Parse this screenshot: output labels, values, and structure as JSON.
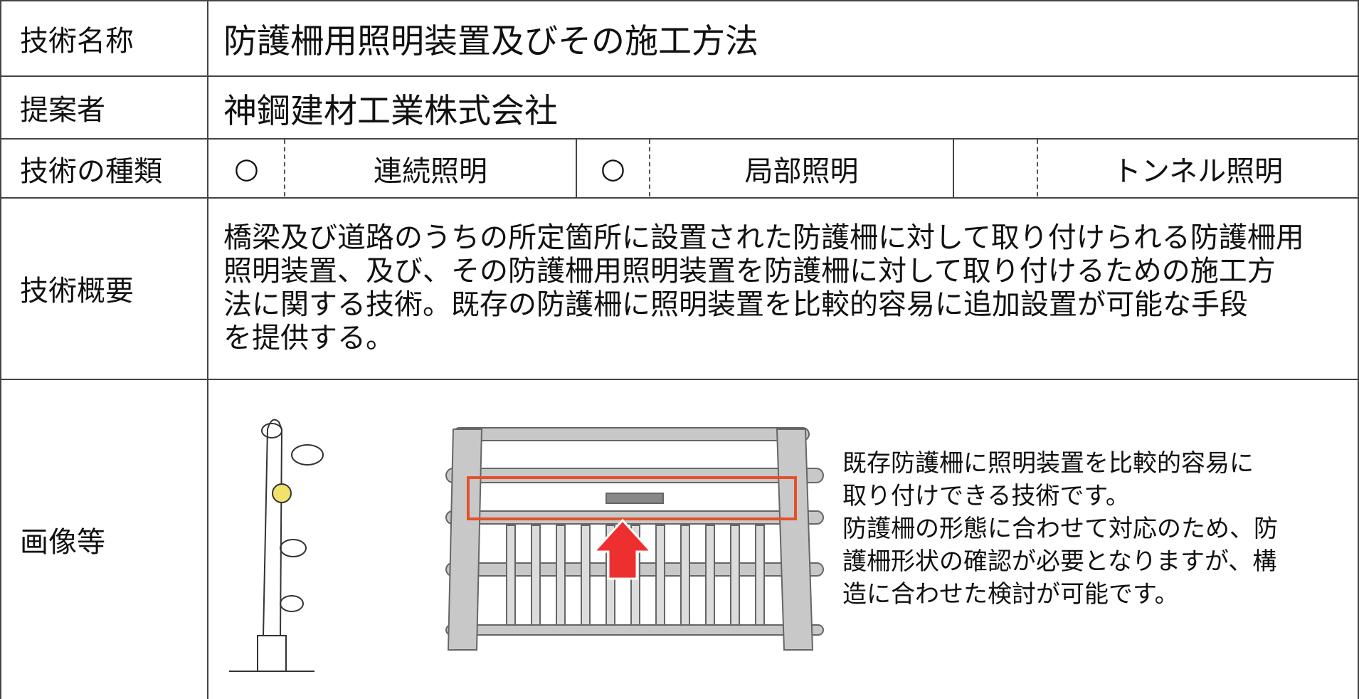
{
  "rows": [
    {
      "label": "技術名称",
      "value": "防護柵用照明装置及びその施工方法"
    },
    {
      "label": "提案者",
      "value": "神鋼建材工業株式会社"
    },
    {
      "label": "技術の種類",
      "options": [
        {
          "mark": "○",
          "label": "連続照明"
        },
        {
          "mark": "○",
          "label": "局部照明"
        },
        {
          "label": "トンネル照明"
        }
      ]
    },
    {
      "label": "技術概要",
      "lines": [
        "橋梁及び道路のうちの所定箇所に設置された防護柵に対して取り付けられる防護柵用",
        "照明装置、及び、その防護柵用照明装置を防護柵に対して取り付けるための施工方",
        "法に関する技術。既存の防護柵に照明装置を比較的容易に追加設置が可能な手段",
        "を提供する。"
      ]
    },
    {
      "label": "画像等",
      "lines": [
        "既存防護柵に照明装置を比較的容易に",
        "取り付けできる技術です。",
        "防護柵の形態に合わせて対応のため、防",
        "護柵形状の確認が必要となりますが、構",
        "造に合わせた検討が可能です。"
      ]
    }
  ]
}
